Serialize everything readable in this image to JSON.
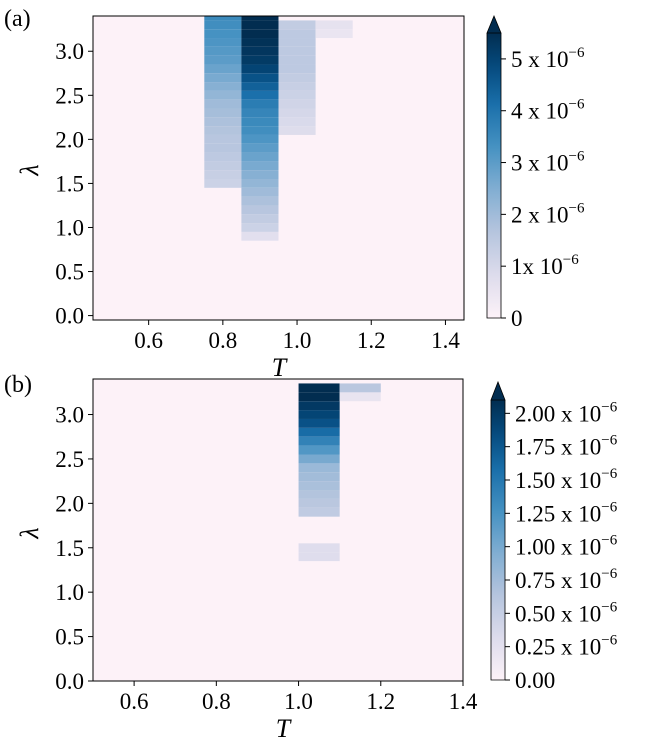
{
  "chart_data": [
    {
      "type": "heatmap",
      "panel_label": "(a)",
      "xlabel": "T",
      "ylabel": "λ",
      "xlim": [
        0.45,
        1.45
      ],
      "ylim": [
        -0.05,
        3.4
      ],
      "xticks": [
        0.6,
        0.8,
        1.0,
        1.2,
        1.4
      ],
      "xtick_labels": [
        "0.6",
        "0.8",
        "1.0",
        "1.2",
        "1.4"
      ],
      "yticks": [
        0.0,
        0.5,
        1.0,
        1.5,
        2.0,
        2.5,
        3.0
      ],
      "ytick_labels": [
        "0.0",
        "0.5",
        "1.0",
        "1.5",
        "2.0",
        "2.5",
        "3.0"
      ],
      "cell_dx": 0.1,
      "cell_dy": 0.1,
      "colorbar": {
        "min": 0,
        "max": 5.5e-06,
        "extend": "max",
        "ticks": [
          0,
          1e-06,
          2e-06,
          3e-06,
          4e-06,
          5e-06
        ],
        "tick_labels": [
          {
            "base": "0",
            "exp": ""
          },
          {
            "base": "1x 10",
            "exp": "−6"
          },
          {
            "base": "2 x 10",
            "exp": "−6"
          },
          {
            "base": "3 x 10",
            "exp": "−6"
          },
          {
            "base": "4 x 10",
            "exp": "−6"
          },
          {
            "base": "5 x 10",
            "exp": "−6"
          }
        ]
      },
      "columns": [
        {
          "T": 0.8,
          "lambda_start": 1.5,
          "values": [
            1.2e-06,
            1.3e-06,
            1.4e-06,
            1.5e-06,
            1.6e-06,
            1.6e-06,
            1.7e-06,
            1.8e-06,
            1.9e-06,
            2e-06,
            2.2e-06,
            2.4e-06,
            2.6e-06,
            2.8e-06,
            3e-06,
            3.1e-06,
            3.2e-06,
            3.3e-06,
            3.4e-06,
            3.5e-06
          ]
        },
        {
          "T": 0.9,
          "lambda_start": 0.9,
          "values": [
            7e-07,
            1.2e-06,
            1.4e-06,
            1.6e-06,
            1.8e-06,
            2e-06,
            2.2e-06,
            2.4e-06,
            2.6e-06,
            2.8e-06,
            3e-06,
            3.2e-06,
            3.4e-06,
            3.5e-06,
            3.6e-06,
            3.8e-06,
            4.1e-06,
            4.4e-06,
            4.7e-06,
            5e-06,
            5.2e-06,
            5.3e-06,
            5.4e-06,
            5.5e-06,
            5.5e-06,
            5.5e-06
          ]
        },
        {
          "T": 1.0,
          "lambda_start": 2.1,
          "values": [
            8e-07,
            9e-07,
            1e-06,
            1.1e-06,
            1.2e-06,
            1.3e-06,
            1.4e-06,
            1.5e-06,
            1.5e-06,
            1.5e-06,
            1.5e-06,
            1.5e-06,
            1.4e-06
          ]
        },
        {
          "T": 1.1,
          "lambda_start": 3.2,
          "values": [
            5e-07,
            6e-07
          ]
        }
      ]
    },
    {
      "type": "heatmap",
      "panel_label": "(b)",
      "xlabel": "T",
      "ylabel": "λ",
      "xlim": [
        0.5,
        1.4
      ],
      "ylim": [
        0.0,
        3.4
      ],
      "xticks": [
        0.6,
        0.8,
        1.0,
        1.2,
        1.4
      ],
      "xtick_labels": [
        "0.6",
        "0.8",
        "1.0",
        "1.2",
        "1.4"
      ],
      "yticks": [
        0.0,
        0.5,
        1.0,
        1.5,
        2.0,
        2.5,
        3.0
      ],
      "ytick_labels": [
        "0.0",
        "0.5",
        "1.0",
        "1.5",
        "2.0",
        "2.5",
        "3.0"
      ],
      "cell_dx": 0.1,
      "cell_dy": 0.1,
      "colorbar": {
        "min": 0,
        "max": 2.1e-06,
        "extend": "max",
        "ticks": [
          0,
          2.5e-07,
          5e-07,
          7.5e-07,
          1e-06,
          1.25e-06,
          1.5e-06,
          1.75e-06,
          2e-06
        ],
        "tick_labels": [
          {
            "base": "0.00",
            "exp": ""
          },
          {
            "base": "0.25 x 10",
            "exp": "−6"
          },
          {
            "base": "0.50 x 10",
            "exp": "−6"
          },
          {
            "base": "0.75 x 10",
            "exp": "−6"
          },
          {
            "base": "1.00 x 10",
            "exp": "−6"
          },
          {
            "base": "1.25 x 10",
            "exp": "−6"
          },
          {
            "base": "1.50 x 10",
            "exp": "−6"
          },
          {
            "base": "1.75 x 10",
            "exp": "−6"
          },
          {
            "base": "2.00 x 10",
            "exp": "−6"
          }
        ]
      },
      "columns": [
        {
          "T": 1.05,
          "lambda_start": 1.4,
          "values": [
            3e-07,
            3e-07
          ]
        },
        {
          "T": 1.05,
          "lambda_start": 1.9,
          "values": [
            5.5e-07,
            6e-07,
            6.5e-07,
            7e-07,
            7.5e-07,
            8e-07,
            1e-06,
            1.2e-06,
            1.4e-06,
            1.6e-06,
            1.8e-06,
            1.9e-06,
            2e-06,
            2.1e-06,
            2.1e-06
          ]
        },
        {
          "T": 1.15,
          "lambda_start": 3.2,
          "values": [
            2e-07,
            6e-07
          ]
        }
      ]
    }
  ]
}
